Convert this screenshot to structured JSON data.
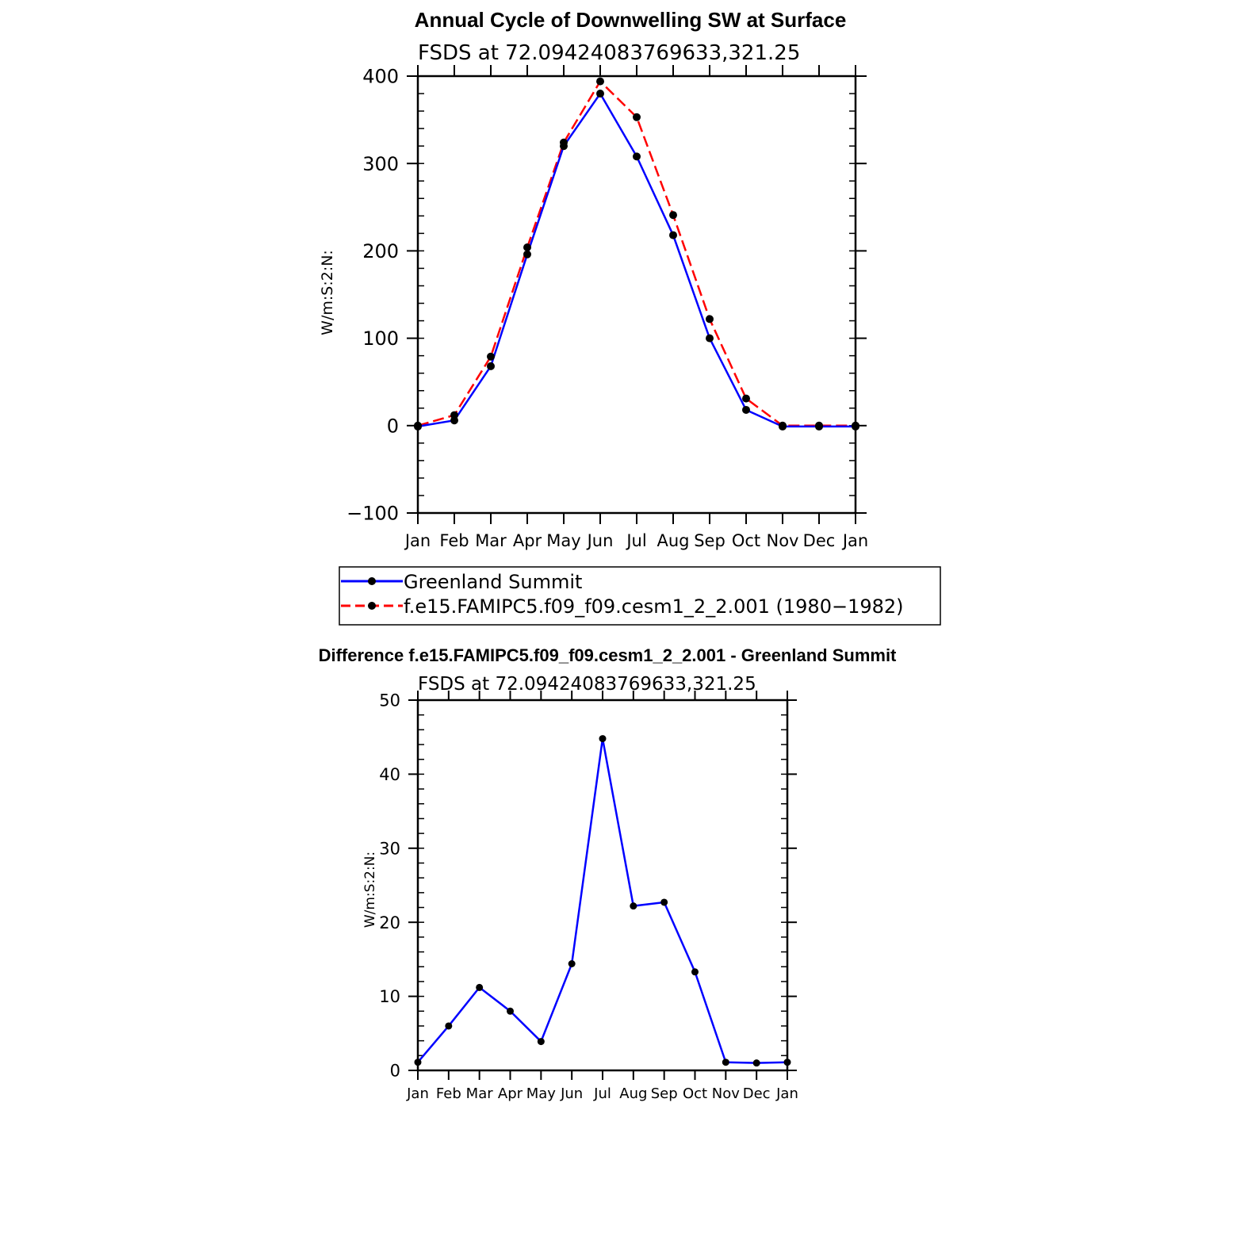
{
  "chart_data": [
    {
      "type": "line",
      "title": "Annual Cycle of Downwelling SW at Surface",
      "subtitle": "FSDS at 72.09424083769633,321.25",
      "xlabel": "",
      "ylabel": "W/m:S:2:N:",
      "ylim": [
        -100,
        400
      ],
      "ytick_values": [
        -100,
        0,
        100,
        200,
        300,
        400
      ],
      "ytick_labels": [
        "−100",
        "0",
        "100",
        "200",
        "300",
        "400"
      ],
      "categories": [
        "Jan",
        "Feb",
        "Mar",
        "Apr",
        "May",
        "Jun",
        "Jul",
        "Aug",
        "Sep",
        "Oct",
        "Nov",
        "Dec",
        "Jan"
      ],
      "series": [
        {
          "name": "Greenland Summit",
          "color": "#0000ff",
          "dashed": false,
          "values": [
            -1,
            6,
            68,
            196,
            320,
            380,
            308,
            218,
            100,
            18,
            -1,
            -1,
            -1
          ]
        },
        {
          "name": "f.e15.FAMIPC5.f09_f09.cesm1_2_2.001 (1980−1982)",
          "color": "#ff0000",
          "dashed": true,
          "values": [
            0,
            12,
            79,
            204,
            324,
            394,
            353,
            241,
            122,
            31,
            0,
            0,
            0
          ]
        }
      ],
      "legend": "below"
    },
    {
      "type": "line",
      "title": "Difference f.e15.FAMIPC5.f09_f09.cesm1_2_2.001 - Greenland Summit",
      "subtitle": "FSDS at 72.09424083769633,321.25",
      "xlabel": "",
      "ylabel": "W/m:S:2:N:",
      "ylim": [
        0,
        50
      ],
      "ytick_values": [
        0,
        10,
        20,
        30,
        40,
        50
      ],
      "ytick_labels": [
        "0",
        "10",
        "20",
        "30",
        "40",
        "50"
      ],
      "categories": [
        "Jan",
        "Feb",
        "Mar",
        "Apr",
        "May",
        "Jun",
        "Jul",
        "Aug",
        "Sep",
        "Oct",
        "Nov",
        "Dec",
        "Jan"
      ],
      "series": [
        {
          "name": "Difference",
          "color": "#0000ff",
          "dashed": false,
          "values": [
            1.1,
            6.0,
            11.2,
            8.0,
            3.9,
            14.4,
            44.8,
            22.2,
            22.7,
            13.3,
            1.1,
            1.0,
            1.1
          ]
        }
      ]
    }
  ]
}
